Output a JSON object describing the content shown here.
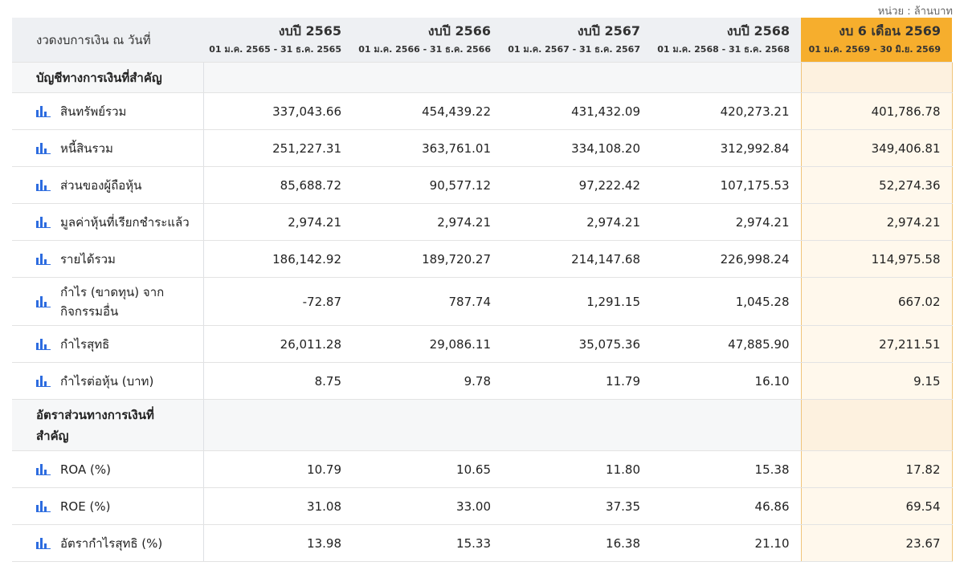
{
  "unit_label": "หน่วย : ล้านบาท",
  "header": {
    "label": "งวดงบการเงิน ณ วันที่",
    "columns": [
      {
        "title": "งบปี 2565",
        "range": "01 ม.ค. 2565 - 31 ธ.ค. 2565"
      },
      {
        "title": "งบปี 2566",
        "range": "01 ม.ค. 2566 - 31 ธ.ค. 2566"
      },
      {
        "title": "งบปี 2567",
        "range": "01 ม.ค. 2567 - 31 ธ.ค. 2567"
      },
      {
        "title": "งบปี 2568",
        "range": "01 ม.ค. 2568 - 31 ธ.ค. 2568"
      },
      {
        "title": "งบ 6 เดือน 2569",
        "range": "01 ม.ค. 2569 - 30 มิ.ย. 2569"
      }
    ]
  },
  "sections": [
    {
      "title": "บัญชีทางการเงินที่สำคัญ",
      "rows": [
        {
          "label": "สินทรัพย์รวม",
          "values": [
            "337,043.66",
            "454,439.22",
            "431,432.09",
            "420,273.21",
            "401,786.78"
          ]
        },
        {
          "label": "หนี้สินรวม",
          "values": [
            "251,227.31",
            "363,761.01",
            "334,108.20",
            "312,992.84",
            "349,406.81"
          ]
        },
        {
          "label": "ส่วนของผู้ถือหุ้น",
          "values": [
            "85,688.72",
            "90,577.12",
            "97,222.42",
            "107,175.53",
            "52,274.36"
          ]
        },
        {
          "label": "มูลค่าหุ้นที่เรียกชำระแล้ว",
          "values": [
            "2,974.21",
            "2,974.21",
            "2,974.21",
            "2,974.21",
            "2,974.21"
          ]
        },
        {
          "label": "รายได้รวม",
          "values": [
            "186,142.92",
            "189,720.27",
            "214,147.68",
            "226,998.24",
            "114,975.58"
          ]
        },
        {
          "label": "กำไร (ขาดทุน) จากกิจกรรมอื่น",
          "values": [
            "-72.87",
            "787.74",
            "1,291.15",
            "1,045.28",
            "667.02"
          ]
        },
        {
          "label": "กำไรสุทธิ",
          "values": [
            "26,011.28",
            "29,086.11",
            "35,075.36",
            "47,885.90",
            "27,211.51"
          ]
        },
        {
          "label": "กำไรต่อหุ้น (บาท)",
          "values": [
            "8.75",
            "9.78",
            "11.79",
            "16.10",
            "9.15"
          ]
        }
      ]
    },
    {
      "title": "อัตราส่วนทางการเงินที่สำคัญ",
      "rows": [
        {
          "label": "ROA (%)",
          "values": [
            "10.79",
            "10.65",
            "11.80",
            "15.38",
            "17.82"
          ]
        },
        {
          "label": "ROE (%)",
          "values": [
            "31.08",
            "33.00",
            "37.35",
            "46.86",
            "69.54"
          ]
        },
        {
          "label": "อัตรากำไรสุทธิ (%)",
          "values": [
            "13.98",
            "15.33",
            "16.38",
            "21.10",
            "23.67"
          ]
        }
      ]
    }
  ],
  "icon": "bar-chart-icon",
  "colors": {
    "highlight_header": "#f6ae2d",
    "highlight_cell": "#fff8ec",
    "icon": "#2d6cdf",
    "header_bg": "#eef0f3"
  }
}
